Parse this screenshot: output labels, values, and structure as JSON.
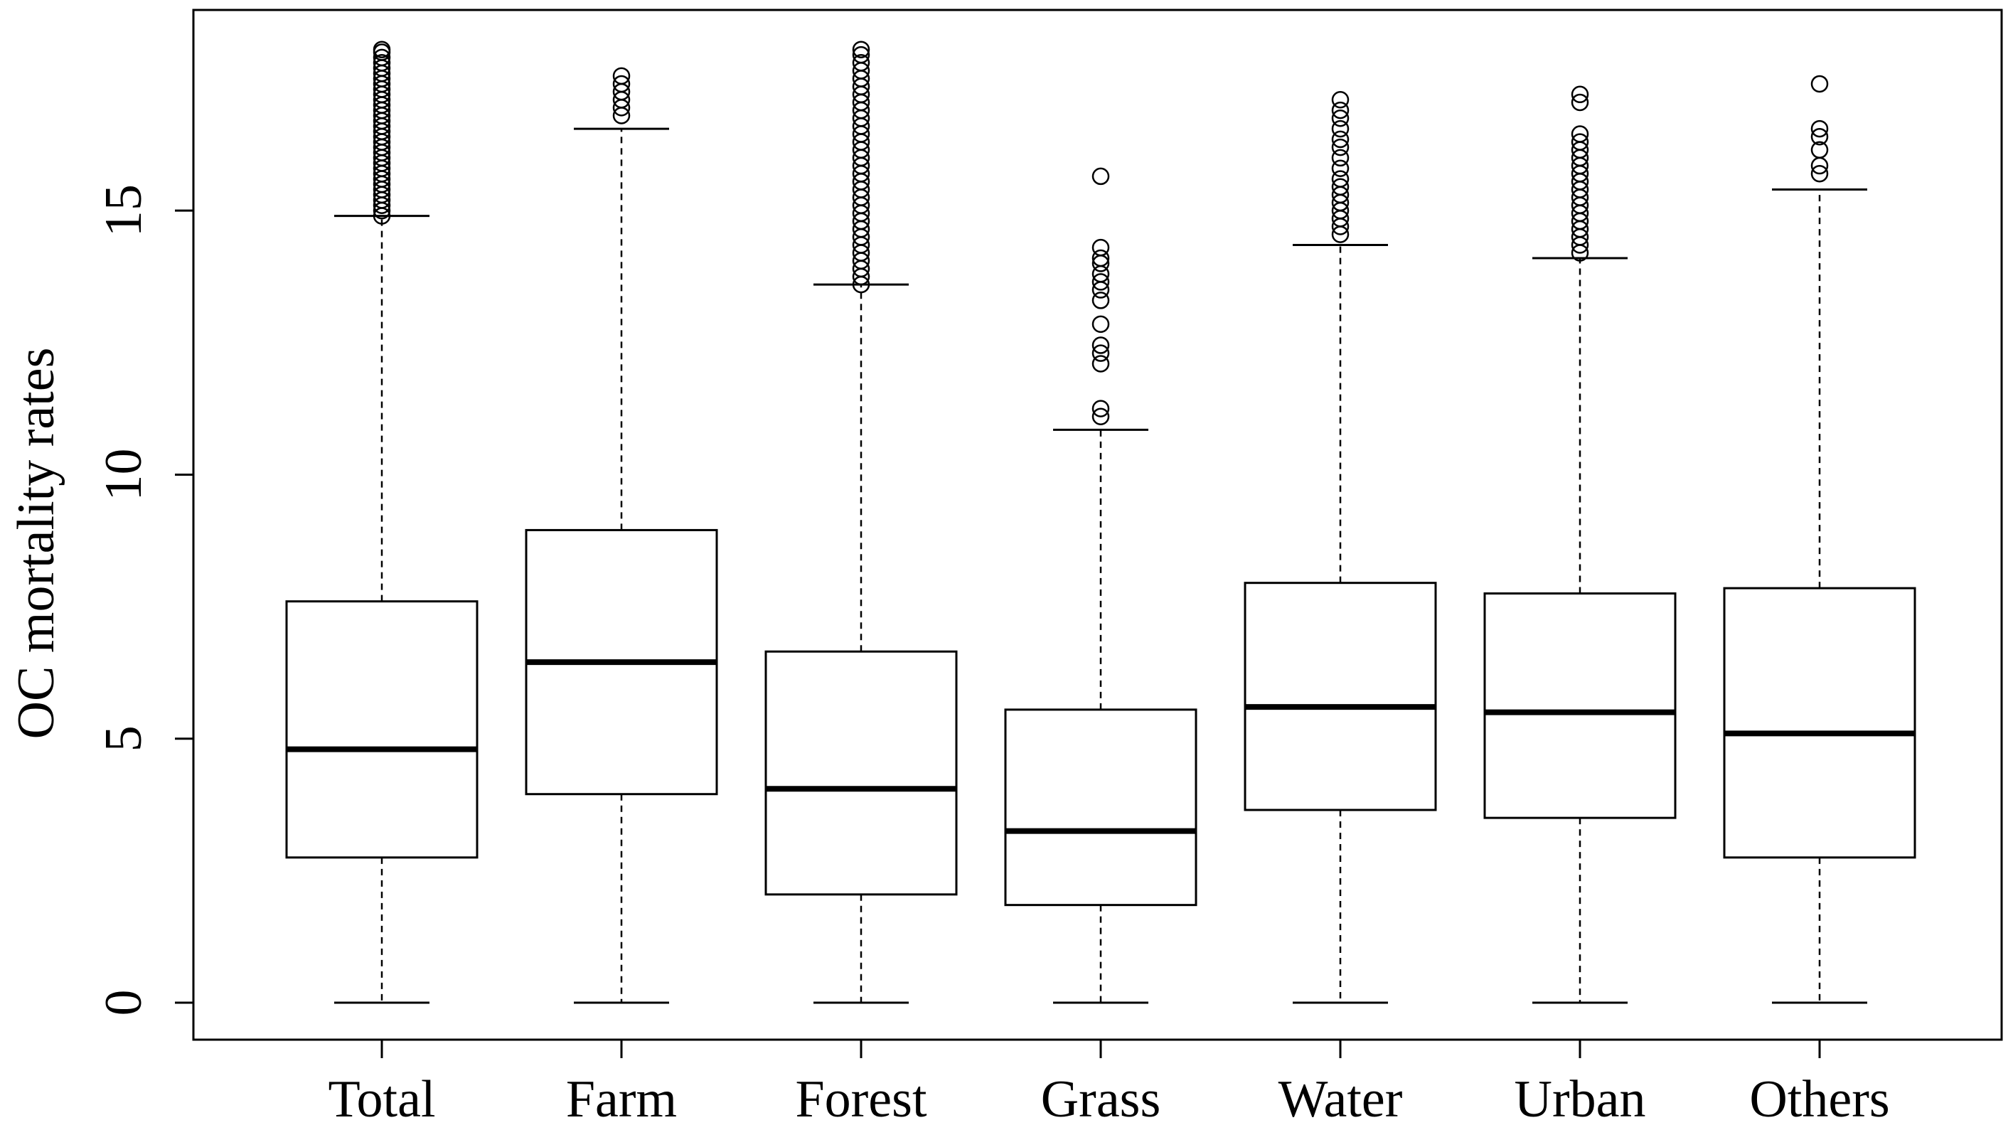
{
  "chart_data": {
    "type": "boxplot",
    "title": "",
    "xlabel": "",
    "ylabel": "OC mortality rates",
    "ylim": [
      -0.7,
      18.8
    ],
    "yticks": [
      0,
      5,
      10,
      15
    ],
    "grid": false,
    "categories": [
      "Total",
      "Farm",
      "Forest",
      "Grass",
      "Water",
      "Urban",
      "Others"
    ],
    "boxes": [
      {
        "category": "Total",
        "whisker_low": 0,
        "q1": 2.75,
        "median": 4.8,
        "q3": 7.6,
        "whisker_high": 14.9,
        "outliers": [
          14.9,
          15.0,
          15.1,
          15.2,
          15.3,
          15.4,
          15.5,
          15.6,
          15.7,
          15.8,
          15.9,
          16.0,
          16.1,
          16.2,
          16.3,
          16.4,
          16.5,
          16.6,
          16.7,
          16.8,
          16.9,
          17.0,
          17.1,
          17.2,
          17.3,
          17.4,
          17.5,
          17.6,
          17.7,
          17.8,
          17.9,
          18.0,
          18.05
        ]
      },
      {
        "category": "Farm",
        "whisker_low": 0,
        "q1": 3.95,
        "median": 6.45,
        "q3": 8.95,
        "whisker_high": 16.55,
        "outliers": [
          16.8,
          16.95,
          17.1,
          17.25,
          17.4,
          17.55
        ]
      },
      {
        "category": "Forest",
        "whisker_low": 0,
        "q1": 2.05,
        "median": 4.05,
        "q3": 6.65,
        "whisker_high": 13.6,
        "outliers": [
          13.6,
          13.75,
          13.9,
          14.05,
          14.2,
          14.35,
          14.5,
          14.65,
          14.8,
          14.95,
          15.1,
          15.25,
          15.4,
          15.55,
          15.7,
          15.85,
          16.0,
          16.15,
          16.3,
          16.45,
          16.6,
          16.75,
          16.9,
          17.05,
          17.2,
          17.35,
          17.5,
          17.65,
          17.8,
          17.95,
          18.05
        ]
      },
      {
        "category": "Grass",
        "whisker_low": 0,
        "q1": 1.85,
        "median": 3.25,
        "q3": 5.55,
        "whisker_high": 10.85,
        "outliers": [
          11.1,
          11.25,
          12.1,
          12.3,
          12.45,
          12.85,
          13.3,
          13.5,
          13.65,
          13.8,
          14.0,
          14.1,
          14.3,
          15.65
        ]
      },
      {
        "category": "Water",
        "whisker_low": 0,
        "q1": 3.65,
        "median": 5.6,
        "q3": 7.95,
        "whisker_high": 14.35,
        "outliers": [
          14.55,
          14.7,
          14.85,
          15.0,
          15.15,
          15.3,
          15.45,
          15.6,
          15.8,
          16.0,
          16.2,
          16.35,
          16.55,
          16.75,
          16.9,
          17.1
        ]
      },
      {
        "category": "Urban",
        "whisker_low": 0,
        "q1": 3.5,
        "median": 5.5,
        "q3": 7.75,
        "whisker_high": 14.1,
        "outliers": [
          14.2,
          14.35,
          14.5,
          14.65,
          14.8,
          14.95,
          15.1,
          15.25,
          15.4,
          15.55,
          15.7,
          15.85,
          16.0,
          16.15,
          16.3,
          16.45,
          17.05,
          17.2
        ]
      },
      {
        "category": "Others",
        "whisker_low": 0,
        "q1": 2.75,
        "median": 5.1,
        "q3": 7.85,
        "whisker_high": 15.4,
        "outliers": [
          15.7,
          15.85,
          16.15,
          16.4,
          16.55,
          17.4
        ]
      }
    ],
    "colors": {
      "stroke": "#000000",
      "fill": "#ffffff"
    }
  }
}
